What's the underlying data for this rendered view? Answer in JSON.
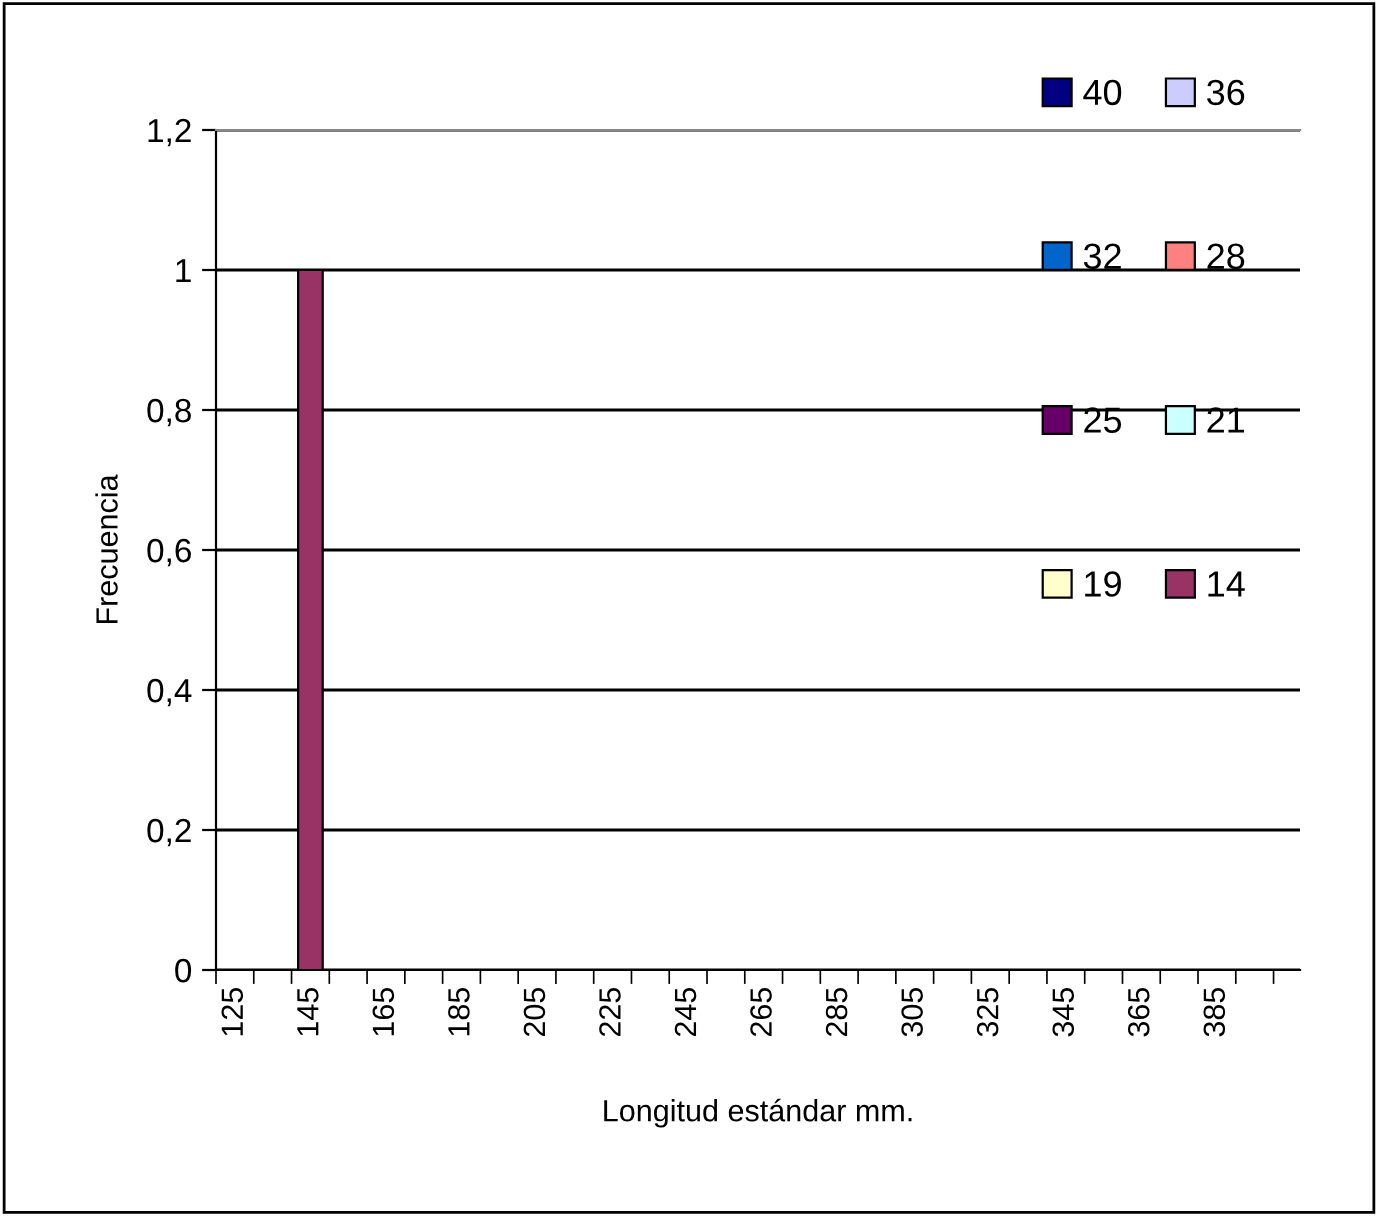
{
  "chart_data": {
    "type": "bar",
    "xlabel": "Longitud estándar mm.",
    "ylabel": "Frecuencia",
    "categories": [
      "125",
      null,
      "145",
      null,
      "165",
      null,
      "185",
      null,
      "205",
      null,
      "225",
      null,
      "245",
      null,
      "265",
      null,
      "285",
      null,
      "305",
      null,
      "325",
      null,
      "345",
      null,
      "365",
      null,
      "385",
      null
    ],
    "series": [
      {
        "name": "40",
        "color": "#000080",
        "values": [
          null,
          null,
          null,
          null,
          null,
          null,
          null,
          null,
          null,
          null,
          null,
          null,
          null,
          null,
          null,
          null,
          null,
          null,
          null,
          null,
          null,
          null,
          null,
          null,
          null,
          null,
          null,
          null
        ]
      },
      {
        "name": "36",
        "color": "#ccccff",
        "values": [
          null,
          null,
          null,
          null,
          null,
          null,
          null,
          null,
          null,
          null,
          null,
          null,
          null,
          null,
          null,
          null,
          null,
          null,
          null,
          null,
          null,
          null,
          null,
          null,
          null,
          null,
          null,
          null
        ]
      },
      {
        "name": "32",
        "color": "#0066cc",
        "values": [
          null,
          null,
          null,
          null,
          null,
          null,
          null,
          null,
          null,
          null,
          null,
          null,
          null,
          null,
          null,
          null,
          null,
          null,
          null,
          null,
          null,
          null,
          null,
          null,
          null,
          null,
          null,
          null
        ]
      },
      {
        "name": "28",
        "color": "#ff8080",
        "values": [
          null,
          null,
          null,
          null,
          null,
          null,
          null,
          null,
          null,
          null,
          null,
          null,
          null,
          null,
          null,
          null,
          null,
          null,
          null,
          null,
          null,
          null,
          null,
          null,
          null,
          null,
          null,
          null
        ]
      },
      {
        "name": "25",
        "color": "#660066",
        "values": [
          null,
          null,
          null,
          null,
          null,
          null,
          null,
          null,
          null,
          null,
          null,
          null,
          null,
          null,
          null,
          null,
          null,
          null,
          null,
          null,
          null,
          null,
          null,
          null,
          null,
          null,
          null,
          null
        ]
      },
      {
        "name": "21",
        "color": "#ccffff",
        "values": [
          null,
          null,
          null,
          null,
          null,
          null,
          null,
          null,
          null,
          null,
          null,
          null,
          null,
          null,
          null,
          null,
          null,
          null,
          null,
          null,
          null,
          null,
          null,
          null,
          null,
          null,
          null,
          null
        ]
      },
      {
        "name": "19",
        "color": "#ffffcc",
        "values": [
          null,
          null,
          null,
          null,
          null,
          null,
          null,
          null,
          null,
          null,
          null,
          null,
          null,
          null,
          null,
          null,
          null,
          null,
          null,
          null,
          null,
          null,
          null,
          null,
          null,
          null,
          null,
          null
        ]
      },
      {
        "name": "14",
        "color": "#993366",
        "values": [
          null,
          null,
          1,
          null,
          null,
          null,
          null,
          null,
          null,
          null,
          null,
          null,
          null,
          null,
          null,
          null,
          null,
          null,
          null,
          null,
          null,
          null,
          null,
          null,
          null,
          null,
          null,
          null
        ]
      }
    ],
    "ylim": [
      0,
      1.2
    ],
    "yticks": [
      {
        "value": 0,
        "label": "0"
      },
      {
        "value": 0.2,
        "label": "0,2"
      },
      {
        "value": 0.4,
        "label": "0,4"
      },
      {
        "value": 0.6,
        "label": "0,6"
      },
      {
        "value": 0.8,
        "label": "0,8"
      },
      {
        "value": 1,
        "label": "1"
      },
      {
        "value": 1.2,
        "label": "1,2"
      }
    ],
    "grid": "y",
    "legend": "top right"
  }
}
